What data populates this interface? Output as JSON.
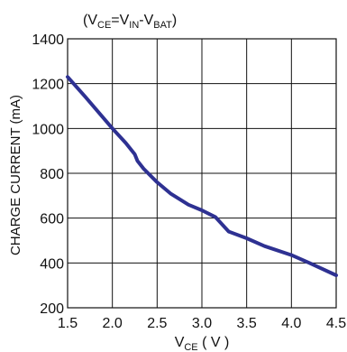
{
  "chart_data": {
    "type": "line",
    "title": "",
    "annotation": {
      "prefix": "(V",
      "ce_sub": "CE",
      "eq": "=V",
      "in_sub": "IN",
      "minus": "-V",
      "bat_sub": "BAT",
      "suffix": ")"
    },
    "xlabel": {
      "main": "V",
      "sub": "CE",
      "unit": " ( V )"
    },
    "ylabel": "CHARGE  CURRENT (mA)",
    "xlim": [
      1.5,
      4.5
    ],
    "ylim": [
      200,
      1400
    ],
    "xticks": [
      1.5,
      2.0,
      2.5,
      3.0,
      3.5,
      4.0,
      4.5
    ],
    "xtick_labels": [
      "1.5",
      "2.0",
      "2.5",
      "3.0",
      "3.5",
      "4.0",
      "4.5"
    ],
    "yticks": [
      200,
      400,
      600,
      800,
      1000,
      1200,
      1400
    ],
    "ytick_labels": [
      "200",
      "400",
      "600",
      "800",
      "1000",
      "1200",
      "1400"
    ],
    "grid": true,
    "line_color": "#2e3192",
    "series": [
      {
        "x": [
          1.5,
          1.7,
          2.0,
          2.15,
          2.25,
          2.28,
          2.35,
          2.5,
          2.65,
          2.85,
          3.0,
          3.15,
          3.3,
          3.5,
          3.7,
          4.0,
          4.2,
          4.5
        ],
        "values": [
          1230,
          1140,
          1000,
          935,
          885,
          855,
          820,
          760,
          710,
          660,
          635,
          605,
          540,
          510,
          475,
          435,
          400,
          345
        ]
      }
    ]
  }
}
